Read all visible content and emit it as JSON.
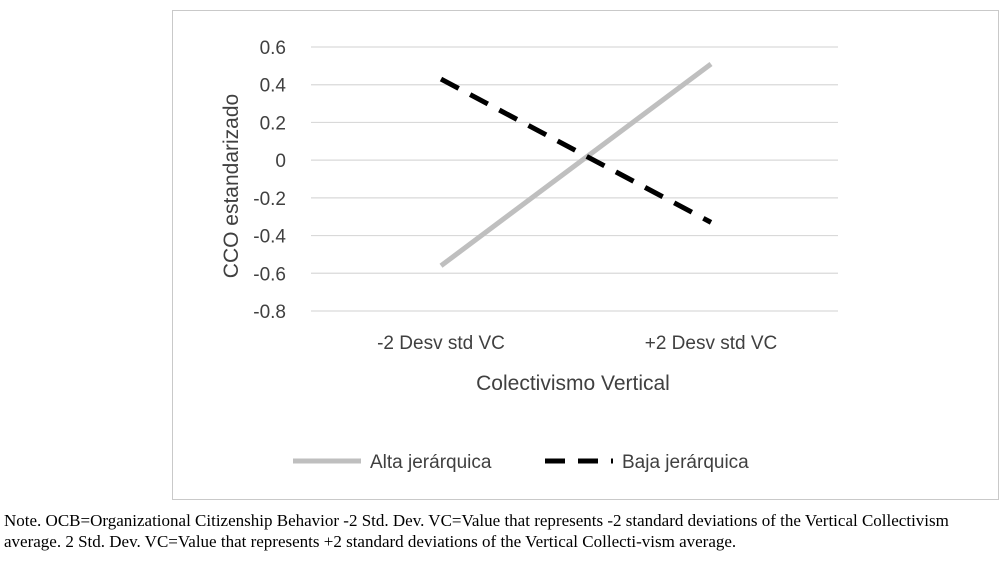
{
  "chart_data": {
    "type": "line",
    "categories": [
      "-2 Desv std  VC",
      "+2 Desv std  VC"
    ],
    "series": [
      {
        "name": "Alta jerárquica",
        "values": [
          -0.56,
          0.51
        ],
        "color": "#bfbfbf",
        "dash": "solid"
      },
      {
        "name": "Baja jerárquica",
        "values": [
          0.43,
          -0.33
        ],
        "color": "#000000",
        "dash": "dashed"
      }
    ],
    "yticks": [
      "0.6",
      "0.4",
      "0.2",
      "0",
      "-0.2",
      "-0.4",
      "-0.6",
      "-0.8"
    ],
    "ylim": [
      -0.8,
      0.6
    ],
    "ylabel": "CCO estandarizado",
    "xlabel": "Colectivismo Vertical",
    "grid": true,
    "legend_position": "bottom"
  },
  "note": "Note. OCB=Organizational Citizenship Behavior -2 Std. Dev. VC=Value that represents -2 standard deviations of the Vertical Collectivism average. 2 Std. Dev. VC=Value that represents +2 standard deviations of the Vertical Collecti-vism average."
}
